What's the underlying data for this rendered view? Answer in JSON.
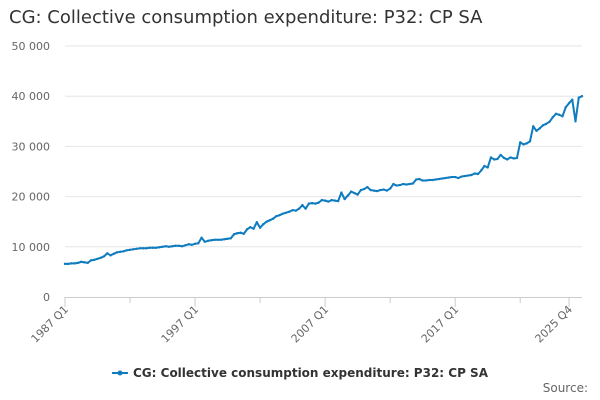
{
  "title": "CG: Collective consumption expenditure: P32: CP SA",
  "source_label": "Source:",
  "chart_data": {
    "type": "line",
    "title": "CG: Collective consumption expenditure: P32: CP SA",
    "xlabel": "",
    "ylabel": "",
    "ylim": [
      0,
      50000
    ],
    "y_ticks": [
      0,
      10000,
      20000,
      30000,
      40000,
      50000
    ],
    "y_tick_labels": [
      "0",
      "10 000",
      "20 000",
      "30 000",
      "40 000",
      "50 000"
    ],
    "x_tick_labels": [
      {
        "q": 0,
        "label": "1987 Q1"
      },
      {
        "q": 40,
        "label": "1997 Q1"
      },
      {
        "q": 80,
        "label": "2007 Q1"
      },
      {
        "q": 120,
        "label": "2017 Q1"
      },
      {
        "q": 155,
        "label": "2025 Q4"
      }
    ],
    "legend_position": "bottom",
    "grid": true,
    "line_color": "#0f7cbf",
    "series": [
      {
        "name": "CG: Collective consumption expenditure: P32: CP SA",
        "color": "#0f7cbf",
        "start": "1987 Q1",
        "values": [
          6600,
          6600,
          6700,
          6700,
          6800,
          7000,
          6900,
          6800,
          7300,
          7400,
          7600,
          7800,
          8100,
          8700,
          8300,
          8600,
          8900,
          9000,
          9100,
          9300,
          9400,
          9500,
          9600,
          9700,
          9700,
          9700,
          9800,
          9800,
          9800,
          9900,
          10000,
          10100,
          10000,
          10100,
          10200,
          10200,
          10100,
          10300,
          10500,
          10400,
          10600,
          10700,
          11800,
          11000,
          11200,
          11300,
          11400,
          11400,
          11400,
          11500,
          11600,
          11700,
          12500,
          12700,
          12800,
          12600,
          13500,
          13900,
          13600,
          14900,
          13800,
          14500,
          15000,
          15300,
          15600,
          16100,
          16300,
          16600,
          16800,
          17000,
          17300,
          17200,
          17600,
          18300,
          17600,
          18600,
          18700,
          18600,
          18800,
          19300,
          19200,
          19000,
          19300,
          19200,
          19100,
          20800,
          19500,
          20200,
          21000,
          20700,
          20400,
          21300,
          21500,
          21900,
          21300,
          21200,
          21100,
          21300,
          21400,
          21200,
          21600,
          22500,
          22200,
          22300,
          22500,
          22400,
          22500,
          22600,
          23400,
          23500,
          23200,
          23200,
          23300,
          23300,
          23400,
          23500,
          23600,
          23700,
          23800,
          23900,
          23900,
          23700,
          24000,
          24100,
          24200,
          24300,
          24600,
          24500,
          25200,
          26100,
          25800,
          27800,
          27400,
          27500,
          28300,
          27700,
          27400,
          27800,
          27600,
          27700,
          30800,
          30400,
          30600,
          31000,
          34000,
          33100,
          33600,
          34200,
          34500,
          34900,
          35800,
          36500,
          36300,
          36000,
          37800,
          38600,
          39300,
          35000,
          39700,
          40000
        ]
      }
    ]
  }
}
